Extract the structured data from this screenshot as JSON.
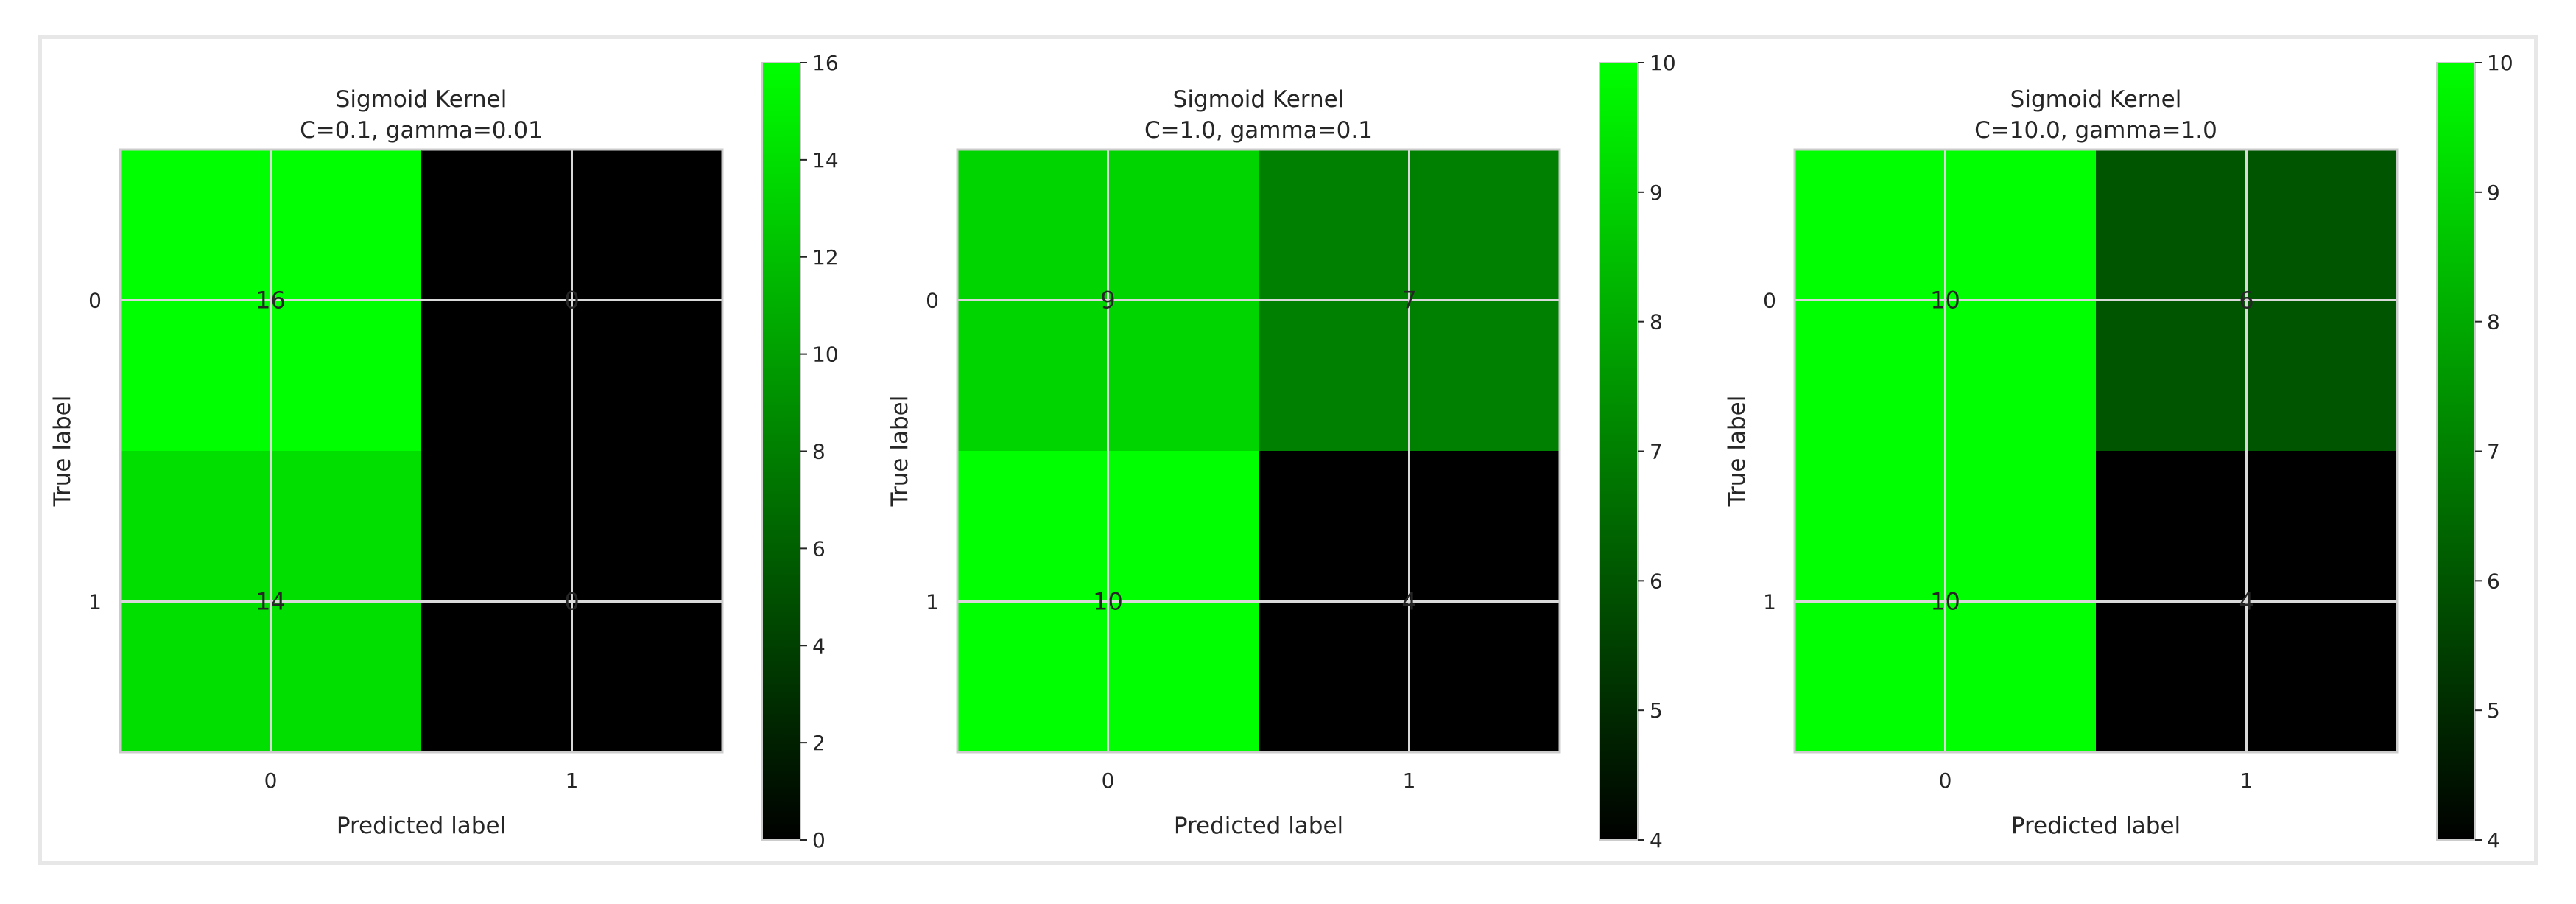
{
  "chart_data": [
    {
      "type": "heatmap",
      "title": "Sigmoid Kernel\nC=0.1, gamma=0.01",
      "xlabel": "Predicted label",
      "ylabel": "True label",
      "x_ticks": [
        "0",
        "1"
      ],
      "y_ticks": [
        "0",
        "1"
      ],
      "matrix": [
        [
          16,
          0
        ],
        [
          14,
          0
        ]
      ],
      "colorbar": {
        "min": 0,
        "max": 16,
        "ticks": [
          0,
          2,
          4,
          6,
          8,
          10,
          12,
          14,
          16
        ]
      },
      "colormap": [
        "#000000",
        "#00ff00"
      ],
      "grid": true
    },
    {
      "type": "heatmap",
      "title": "Sigmoid Kernel\nC=1.0, gamma=0.1",
      "xlabel": "Predicted label",
      "ylabel": "True label",
      "x_ticks": [
        "0",
        "1"
      ],
      "y_ticks": [
        "0",
        "1"
      ],
      "matrix": [
        [
          9,
          7
        ],
        [
          10,
          4
        ]
      ],
      "colorbar": {
        "min": 4,
        "max": 10,
        "ticks": [
          4,
          5,
          6,
          7,
          8,
          9,
          10
        ]
      },
      "colormap": [
        "#000000",
        "#00ff00"
      ],
      "grid": true
    },
    {
      "type": "heatmap",
      "title": "Sigmoid Kernel\nC=10.0, gamma=1.0",
      "xlabel": "Predicted label",
      "ylabel": "True label",
      "x_ticks": [
        "0",
        "1"
      ],
      "y_ticks": [
        "0",
        "1"
      ],
      "matrix": [
        [
          10,
          6
        ],
        [
          10,
          4
        ]
      ],
      "colorbar": {
        "min": 4,
        "max": 10,
        "ticks": [
          4,
          5,
          6,
          7,
          8,
          9,
          10
        ]
      },
      "colormap": [
        "#000000",
        "#00ff00"
      ],
      "grid": true
    }
  ],
  "colors": {
    "text_dark": "#262626",
    "text_bright": "#00ff00",
    "grid_line": "#d9d9d9",
    "frame_border": "#e7e7e7"
  }
}
